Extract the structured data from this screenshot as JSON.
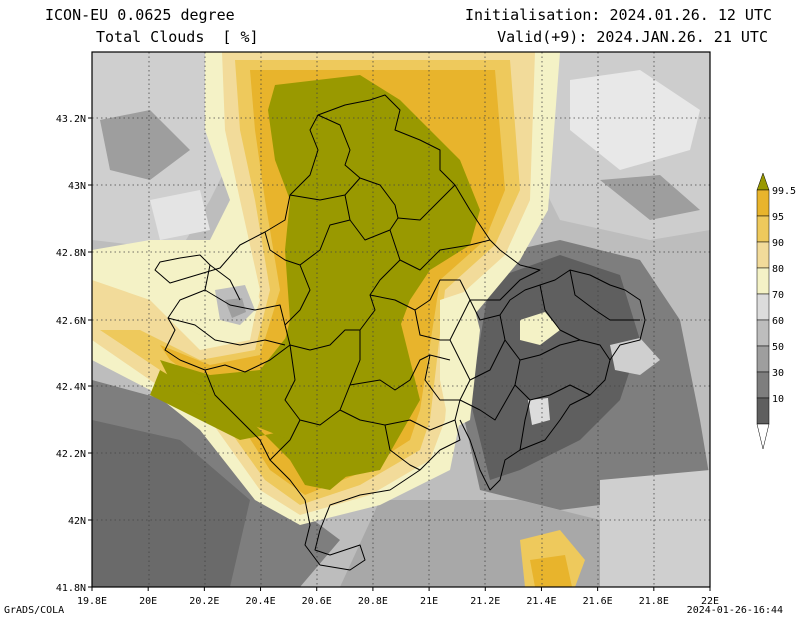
{
  "header": {
    "model": "ICON-EU 0.0625 degree",
    "variable": "Total Clouds  [ %]",
    "init": "Initialisation: 2024.01.26. 12 UTC",
    "valid": "Valid(+9): 2024.JAN.26. 21 UTC"
  },
  "footer": {
    "left": "GrADS/COLA",
    "right": "2024-01-26-16:44"
  },
  "axes": {
    "x_ticks": [
      "19.8E",
      "20E",
      "20.2E",
      "20.4E",
      "20.6E",
      "20.8E",
      "21E",
      "21.2E",
      "21.4E",
      "21.6E",
      "21.8E",
      "22E"
    ],
    "y_ticks": [
      "43.2N",
      "43N",
      "42.8N",
      "42.6N",
      "42.4N",
      "42.2N",
      "42N",
      "41.8N"
    ]
  },
  "colorbar": {
    "labels": [
      "99.5",
      "95",
      "90",
      "80",
      "70",
      "60",
      "50",
      "30",
      "10"
    ],
    "colors": [
      "#999900",
      "#e8b42c",
      "#eec95c",
      "#f2db9a",
      "#f4f2c6",
      "#dcdcdc",
      "#bdbdbd",
      "#9e9e9e",
      "#7e7e7e",
      "#5f5f5f",
      "#ffffff"
    ]
  },
  "map_colors": {
    "olive": "#999900",
    "gold": "#e8b42c",
    "lightgold": "#eec95c",
    "tan": "#f2db9a",
    "cream": "#f4f2c6",
    "light_gray": "#dcdcdc",
    "mid_gray": "#bdbdbd",
    "gray": "#9e9e9e",
    "dark_gray": "#7e7e7e",
    "darkest": "#5f5f5f"
  }
}
